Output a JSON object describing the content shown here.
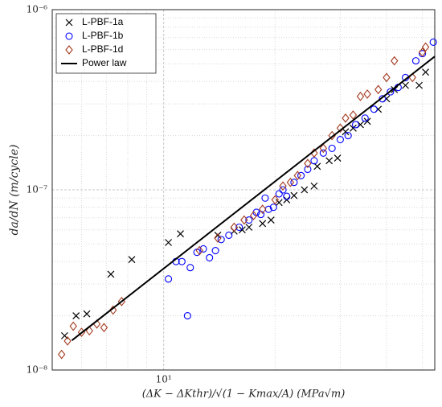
{
  "chart_data": {
    "type": "scatter",
    "xlabel": "(ΔK − ΔKthr)/√(1 − Kmax/A) (MPa√m)",
    "ylabel": "da/dN (m/cycle)",
    "xscale": "log",
    "yscale": "log",
    "xlim": [
      5,
      54
    ],
    "ylim": [
      1e-08,
      1e-06
    ],
    "xticks": [
      {
        "value": 10,
        "label": "10¹"
      }
    ],
    "yticks": [
      {
        "value": 1e-08,
        "label": "10⁻⁸"
      },
      {
        "value": 1e-07,
        "label": "10⁻⁷"
      },
      {
        "value": 1e-06,
        "label": "10⁻⁶"
      }
    ],
    "grid": true,
    "minor_grid": true,
    "legend": "upper left",
    "series": [
      {
        "name": "L-PBF-1a",
        "color": "#000000",
        "marker": "x",
        "x": [
          5.4,
          5.8,
          6.2,
          7.2,
          8.2,
          10.3,
          11.1,
          14,
          15.5,
          16.3,
          17,
          18.5,
          19.5,
          20.5,
          21.5,
          22.5,
          24,
          25.5,
          26,
          28,
          29.5,
          31,
          32.5,
          34,
          35.5,
          38,
          40,
          42,
          45,
          49,
          51
        ],
        "values": [
          1.55e-08,
          2e-08,
          2.05e-08,
          3.4e-08,
          4.1e-08,
          5.1e-08,
          5.7e-08,
          5.6e-08,
          5.9e-08,
          6e-08,
          6.2e-08,
          6.5e-08,
          6.8e-08,
          8.5e-08,
          8.8e-08,
          9.3e-08,
          1e-07,
          1.05e-07,
          1.35e-07,
          1.45e-07,
          1.5e-07,
          2.1e-07,
          2.2e-07,
          2.3e-07,
          2.4e-07,
          2.8e-07,
          3.2e-07,
          3.6e-07,
          3.8e-07,
          3.8e-07,
          4.5e-07
        ]
      },
      {
        "name": "L-PBF-1b",
        "color": "#0000ff",
        "marker": "o",
        "x": [
          10.3,
          10.8,
          11.2,
          11.6,
          11.8,
          12.3,
          12.8,
          13.3,
          13.8,
          14.3,
          15,
          16,
          17,
          17.8,
          18.3,
          18.8,
          19.2,
          19.8,
          20.5,
          21,
          21.5,
          22.5,
          23.5,
          24.5,
          25.5,
          27,
          28.5,
          30,
          31.5,
          33,
          35,
          37,
          39,
          41,
          43,
          45,
          48,
          50,
          53.5
        ],
        "values": [
          3.2e-08,
          4e-08,
          4e-08,
          2e-08,
          3.7e-08,
          4.5e-08,
          4.7e-08,
          4.2e-08,
          4.6e-08,
          5.3e-08,
          5.6e-08,
          6.2e-08,
          6.8e-08,
          7.5e-08,
          7.3e-08,
          9e-08,
          7.8e-08,
          8e-08,
          9.5e-08,
          1e-07,
          9.2e-08,
          1.1e-07,
          1.2e-07,
          1.3e-07,
          1.45e-07,
          1.6e-07,
          1.7e-07,
          1.9e-07,
          2e-07,
          2.3e-07,
          2.5e-07,
          2.8e-07,
          3.2e-07,
          3.5e-07,
          3.7e-07,
          4.2e-07,
          5.2e-07,
          5.7e-07,
          6.6e-07
        ]
      },
      {
        "name": "L-PBF-1d",
        "color": "#a33a1f",
        "marker": "d",
        "x": [
          5.3,
          5.5,
          5.7,
          6.0,
          6.3,
          6.6,
          6.9,
          7.3,
          7.7,
          12.5,
          14,
          15.5,
          16.5,
          17.5,
          18.5,
          20,
          21,
          22,
          23,
          24.5,
          25.5,
          27,
          28.5,
          30,
          31,
          32.5,
          34,
          35.5,
          38,
          40,
          42,
          47,
          50,
          51
        ],
        "values": [
          1.22e-08,
          1.45e-08,
          1.75e-08,
          1.62e-08,
          1.65e-08,
          1.8e-08,
          1.72e-08,
          2.15e-08,
          2.4e-08,
          4.6e-08,
          5.4e-08,
          6.2e-08,
          6.8e-08,
          7.2e-08,
          7.8e-08,
          8.8e-08,
          1.05e-07,
          1.1e-07,
          1.2e-07,
          1.4e-07,
          1.6e-07,
          1.7e-07,
          2e-07,
          2.2e-07,
          2.5e-07,
          2.6e-07,
          3.3e-07,
          3.4e-07,
          3.6e-07,
          4.2e-07,
          5.2e-07,
          4.2e-07,
          5.8e-07,
          6.2e-07
        ]
      },
      {
        "name": "Power law",
        "color": "#000000",
        "marker": "line",
        "x": [
          5.65,
          54
        ],
        "values": [
          1.46e-08,
          5.5e-07
        ]
      }
    ]
  }
}
